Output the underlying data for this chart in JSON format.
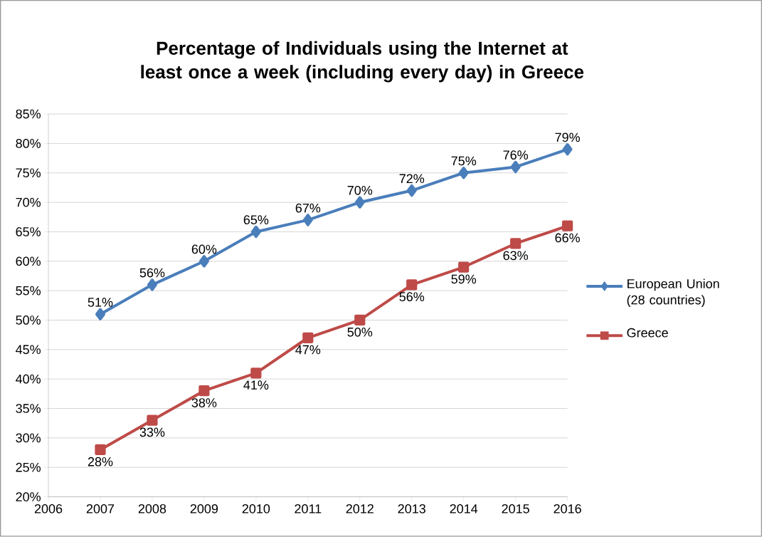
{
  "chart_data": {
    "type": "line",
    "title": "Percentage of Individuals using the Internet at least once a week (including every day) in Greece",
    "x": [
      2007,
      2008,
      2009,
      2010,
      2011,
      2012,
      2013,
      2014,
      2015,
      2016
    ],
    "series": [
      {
        "name": "European Union (28 countries)",
        "color": "#4a7ebb",
        "marker": "diamond",
        "values": [
          51,
          56,
          60,
          65,
          67,
          70,
          72,
          75,
          76,
          79
        ],
        "value_labels": [
          "51%",
          "56%",
          "60%",
          "65%",
          "67%",
          "70%",
          "72%",
          "75%",
          "76%",
          "79%"
        ]
      },
      {
        "name": "Greece",
        "color": "#be4b48",
        "marker": "square",
        "values": [
          28,
          33,
          38,
          41,
          47,
          50,
          56,
          59,
          63,
          66
        ],
        "value_labels": [
          "28%",
          "33%",
          "38%",
          "41%",
          "47%",
          "50%",
          "56%",
          "59%",
          "63%",
          "66%"
        ]
      }
    ],
    "xlim": [
      2006,
      2016
    ],
    "xticks": [
      2006,
      2007,
      2008,
      2009,
      2010,
      2011,
      2012,
      2013,
      2014,
      2015,
      2016
    ],
    "ylim": [
      20,
      85
    ],
    "yticks": [
      {
        "value": 20,
        "label": "20%"
      },
      {
        "value": 25,
        "label": "25%"
      },
      {
        "value": 30,
        "label": "30%"
      },
      {
        "value": 35,
        "label": "35%"
      },
      {
        "value": 40,
        "label": "40%"
      },
      {
        "value": 45,
        "label": "45%"
      },
      {
        "value": 50,
        "label": "50%"
      },
      {
        "value": 55,
        "label": "55%"
      },
      {
        "value": 60,
        "label": "60%"
      },
      {
        "value": 65,
        "label": "65%"
      },
      {
        "value": 70,
        "label": "70%"
      },
      {
        "value": 75,
        "label": "75%"
      },
      {
        "value": 80,
        "label": "80%"
      },
      {
        "value": 85,
        "label": "85%"
      }
    ],
    "grid": "y",
    "legend": "right",
    "line_style": "solid"
  }
}
